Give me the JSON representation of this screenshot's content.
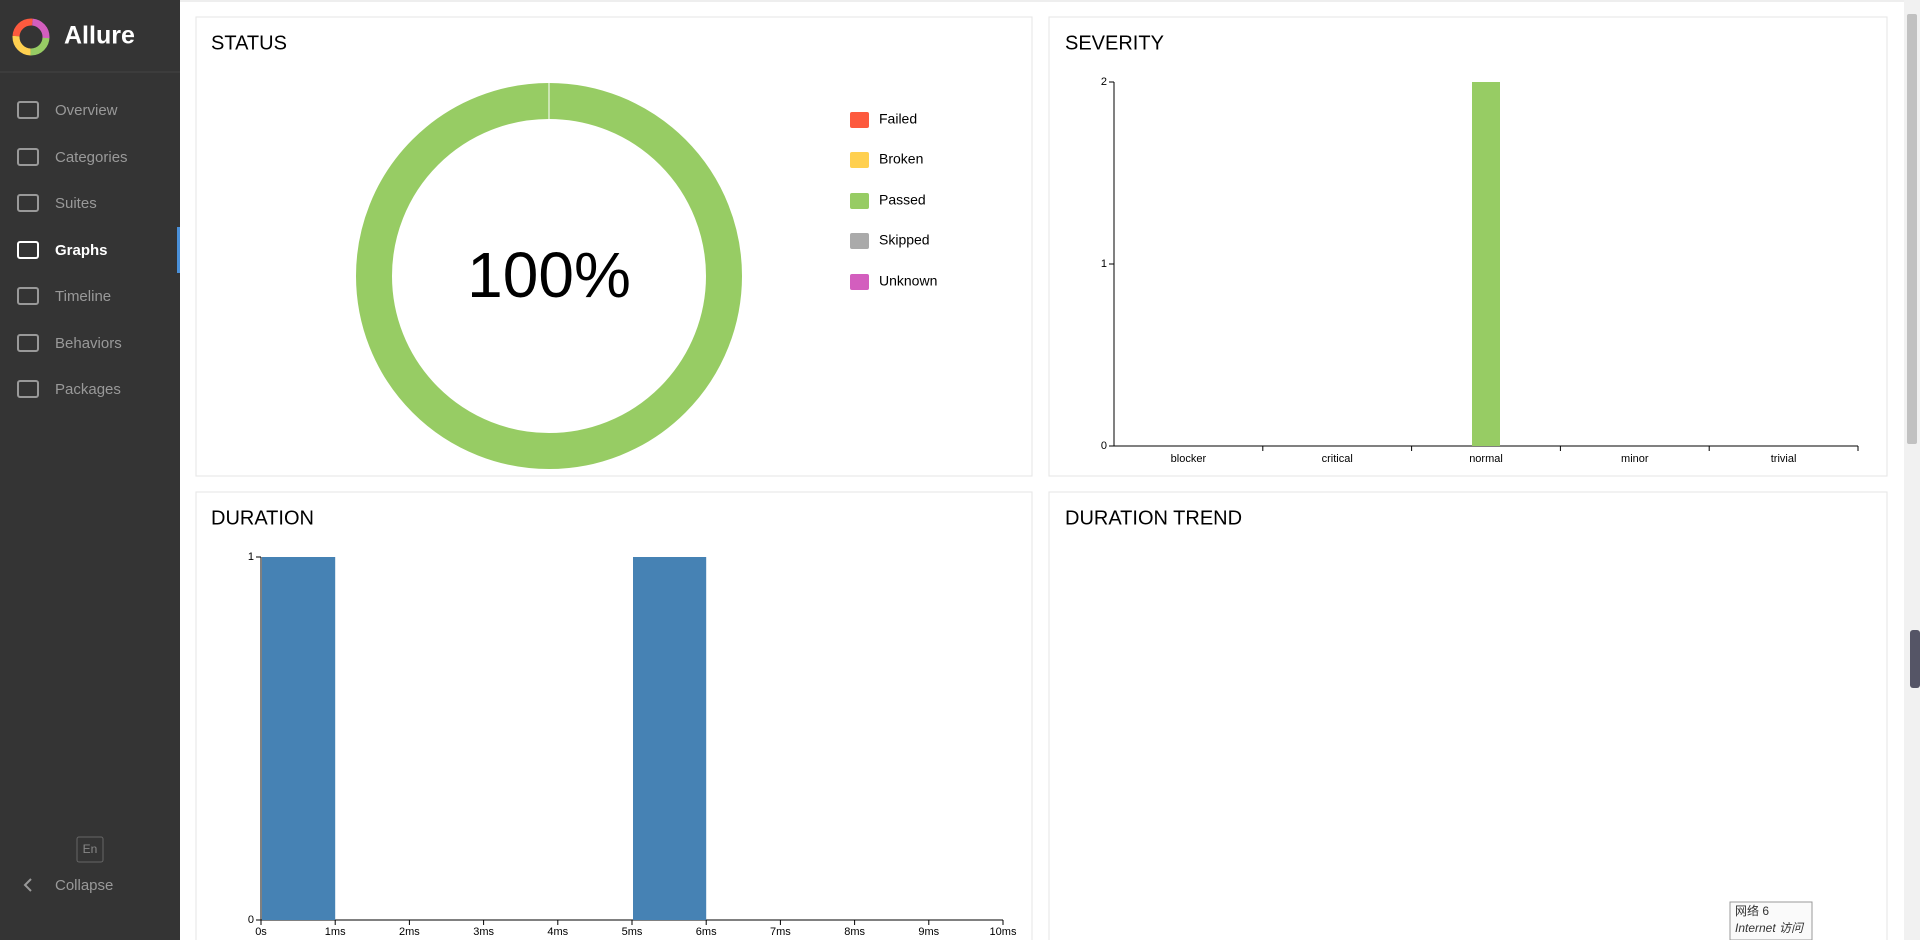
{
  "sidebar": {
    "brand": "Allure",
    "nav": [
      "Overview",
      "Categories",
      "Suites",
      "Graphs",
      "Timeline",
      "Behaviors",
      "Packages"
    ],
    "active": 3,
    "language": "En",
    "collapse": "Collapse"
  },
  "chart_data": [
    {
      "type": "pie",
      "title": "STATUS",
      "categories": [
        "Failed",
        "Broken",
        "Passed",
        "Skipped",
        "Unknown"
      ],
      "values": [
        0,
        0,
        100,
        0,
        0
      ],
      "colors": [
        "#fd5a3e",
        "#ffd050",
        "#97cc64",
        "#aaaaaa",
        "#d35ebe"
      ],
      "center_label": "100%",
      "donut": true,
      "legend": "right"
    },
    {
      "type": "bar",
      "title": "SEVERITY",
      "categories": [
        "blocker",
        "critical",
        "normal",
        "minor",
        "trivial"
      ],
      "values": [
        0,
        0,
        2,
        0,
        0
      ],
      "color": "#97cc64",
      "ylim": [
        0,
        2
      ],
      "yticks": [
        0,
        1,
        2
      ]
    },
    {
      "type": "histogram",
      "title": "DURATION",
      "bins": [
        0,
        1,
        2,
        3,
        4,
        5,
        6,
        7,
        8,
        9,
        10
      ],
      "values": [
        1,
        0,
        0,
        0,
        0,
        1,
        0,
        0,
        0,
        0
      ],
      "color": "#4682b4",
      "xlim": [
        0,
        10
      ],
      "xticks": [
        {
          "value": 0,
          "label": "0s"
        },
        {
          "value": 1,
          "label": "1ms"
        },
        {
          "value": 2,
          "label": "2ms"
        },
        {
          "value": 3,
          "label": "3ms"
        },
        {
          "value": 4,
          "label": "4ms"
        },
        {
          "value": 5,
          "label": "5ms"
        },
        {
          "value": 6,
          "label": "6ms"
        },
        {
          "value": 7,
          "label": "7ms"
        },
        {
          "value": 8,
          "label": "8ms"
        },
        {
          "value": 9,
          "label": "9ms"
        },
        {
          "value": 10,
          "label": "10ms"
        }
      ],
      "ylim": [
        0,
        1
      ],
      "yticks": [
        0,
        1
      ]
    },
    {
      "title": "DURATION TREND"
    }
  ],
  "status_popup": {
    "line1": "网络  6",
    "line2": "Internet 访问"
  }
}
